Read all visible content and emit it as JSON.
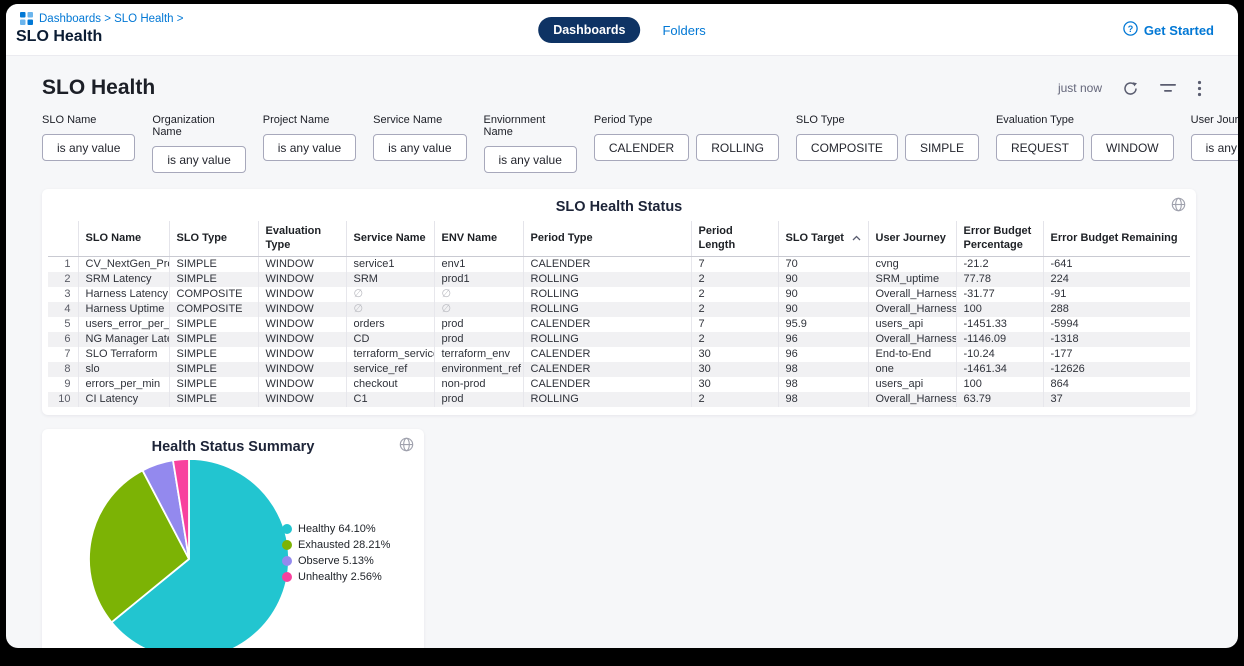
{
  "colors": {
    "accent_blue": "#0278d5",
    "active_tab_bg": "#0e3364",
    "page_bg": "#f6f7f9",
    "stripe": "#f1f1f3"
  },
  "header": {
    "breadcrumb": "Dashboards > SLO Health >",
    "window_title": "SLO Health",
    "tabs": [
      {
        "label": "Dashboards",
        "active": true
      },
      {
        "label": "Folders",
        "active": false
      }
    ],
    "get_started_label": "Get Started"
  },
  "toolbar": {
    "page_title": "SLO Health",
    "refreshed_label": "just now"
  },
  "filters": [
    {
      "label": "SLO Name",
      "type": "value",
      "value": "is any value"
    },
    {
      "label": "Organization Name",
      "type": "value",
      "value": "is any value"
    },
    {
      "label": "Project Name",
      "type": "value",
      "value": "is any value"
    },
    {
      "label": "Service Name",
      "type": "value",
      "value": "is any value"
    },
    {
      "label": "Enviornment Name",
      "type": "value",
      "value": "is any value"
    },
    {
      "label": "Period Type",
      "type": "options",
      "options": [
        "CALENDER",
        "ROLLING"
      ]
    },
    {
      "label": "SLO Type",
      "type": "options",
      "options": [
        "COMPOSITE",
        "SIMPLE"
      ]
    },
    {
      "label": "Evaluation Type",
      "type": "options",
      "options": [
        "REQUEST",
        "WINDOW"
      ]
    },
    {
      "label": "User Journey",
      "type": "value",
      "value": "is any value"
    }
  ],
  "table": {
    "title": "SLO Health Status",
    "columns": [
      "SLO Name",
      "SLO Type",
      "Evaluation Type",
      "Service Name",
      "ENV Name",
      "Period Type",
      "Period Length",
      "SLO Target",
      "User Journey",
      "Error Budget Percentage",
      "Error Budget Remaining"
    ],
    "sort_column": "SLO Target",
    "sort_direction": "asc",
    "null_symbol": "∅",
    "rows": [
      [
        "CV_NextGen_Prod",
        "SIMPLE",
        "WINDOW",
        "service1",
        "env1",
        "CALENDER",
        "7",
        "70",
        "cvng",
        "-21.2",
        "-641"
      ],
      [
        "SRM Latency",
        "SIMPLE",
        "WINDOW",
        "SRM",
        "prod1",
        "ROLLING",
        "2",
        "90",
        "SRM_uptime",
        "77.78",
        "224"
      ],
      [
        "Harness Latency",
        "COMPOSITE",
        "WINDOW",
        "∅",
        "∅",
        "ROLLING",
        "2",
        "90",
        "Overall_Harness",
        "-31.77",
        "-91"
      ],
      [
        "Harness Uptime",
        "COMPOSITE",
        "WINDOW",
        "∅",
        "∅",
        "ROLLING",
        "2",
        "90",
        "Overall_Harness",
        "100",
        "288"
      ],
      [
        "users_error_per_min",
        "SIMPLE",
        "WINDOW",
        "orders",
        "prod",
        "CALENDER",
        "7",
        "95.9",
        "users_api",
        "-1451.33",
        "-5994"
      ],
      [
        "NG Manager Latency",
        "SIMPLE",
        "WINDOW",
        "CD",
        "prod",
        "ROLLING",
        "2",
        "96",
        "Overall_Harness",
        "-1146.09",
        "-1318"
      ],
      [
        "SLO Terraform",
        "SIMPLE",
        "WINDOW",
        "terraform_service",
        "terraform_env",
        "CALENDER",
        "30",
        "96",
        "End-to-End",
        "-10.24",
        "-177"
      ],
      [
        "slo",
        "SIMPLE",
        "WINDOW",
        "service_ref",
        "environment_ref",
        "CALENDER",
        "30",
        "98",
        "one",
        "-1461.34",
        "-12626"
      ],
      [
        "errors_per_min",
        "SIMPLE",
        "WINDOW",
        "checkout",
        "non-prod",
        "CALENDER",
        "30",
        "98",
        "users_api",
        "100",
        "864"
      ],
      [
        "CI Latency",
        "SIMPLE",
        "WINDOW",
        "C1",
        "prod",
        "ROLLING",
        "2",
        "98",
        "Overall_Harness",
        "63.79",
        "37"
      ]
    ]
  },
  "chart_data": {
    "type": "pie",
    "title": "Health Status Summary",
    "labels": [
      "Healthy",
      "Exhausted",
      "Observe",
      "Unhealthy"
    ],
    "values": [
      64.1,
      28.21,
      5.13,
      2.56
    ],
    "colors": [
      "#22c5d0",
      "#7cb305",
      "#9389ee",
      "#f8419e"
    ],
    "legend_entries": [
      "Healthy 64.10%",
      "Exhausted 28.21%",
      "Observe 5.13%",
      "Unhealthy 2.56%"
    ],
    "legend_position": "right",
    "start_angle": 0,
    "direction": "clockwise"
  }
}
